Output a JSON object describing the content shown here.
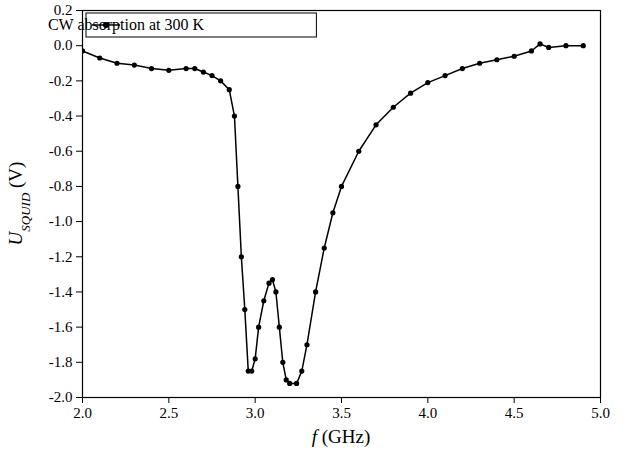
{
  "chart_data": {
    "type": "line",
    "x_label": {
      "main": "f",
      "rest": " (GHz)"
    },
    "y_label": {
      "main": "U",
      "subscript": "SQUID",
      "rest": " (V)"
    },
    "xlim": [
      2.0,
      5.0
    ],
    "ylim": [
      -2.0,
      0.2
    ],
    "xticks": [
      {
        "value": 2,
        "label": "2.0"
      },
      2.5,
      {
        "value": 3,
        "label": "3.0"
      },
      3.5,
      {
        "value": 4,
        "label": "4.0"
      },
      4.5,
      {
        "value": 5,
        "label": "5.0"
      }
    ],
    "yticks": [
      {
        "value": -2,
        "label": "-2.0"
      },
      -1.8,
      -1.6,
      -1.4,
      -1.2,
      {
        "value": -1,
        "label": "-1.0"
      },
      -0.8,
      -0.6,
      -0.4,
      -0.2,
      {
        "value": 0,
        "label": "0.0"
      },
      0.2
    ],
    "grid": false,
    "legend": "top-left",
    "series": [
      {
        "name": "CW absorption at 300 K",
        "color": "#000000",
        "marker": "circle",
        "line_style": "solid",
        "x": [
          2.0,
          2.1,
          2.2,
          2.3,
          2.4,
          2.5,
          2.6,
          2.65,
          2.7,
          2.75,
          2.8,
          2.85,
          2.88,
          2.9,
          2.92,
          2.94,
          2.96,
          2.98,
          3.0,
          3.02,
          3.05,
          3.08,
          3.1,
          3.12,
          3.14,
          3.16,
          3.18,
          3.2,
          3.24,
          3.27,
          3.3,
          3.35,
          3.4,
          3.45,
          3.5,
          3.6,
          3.7,
          3.8,
          3.9,
          4.0,
          4.1,
          4.2,
          4.3,
          4.4,
          4.5,
          4.6,
          4.65,
          4.7,
          4.8,
          4.9
        ],
        "values": [
          -0.03,
          -0.07,
          -0.1,
          -0.11,
          -0.13,
          -0.14,
          -0.13,
          -0.13,
          -0.15,
          -0.17,
          -0.2,
          -0.25,
          -0.4,
          -0.8,
          -1.2,
          -1.5,
          -1.85,
          -1.85,
          -1.78,
          -1.6,
          -1.45,
          -1.35,
          -1.33,
          -1.4,
          -1.6,
          -1.8,
          -1.9,
          -1.92,
          -1.92,
          -1.85,
          -1.7,
          -1.4,
          -1.15,
          -0.95,
          -0.8,
          -0.6,
          -0.45,
          -0.35,
          -0.27,
          -0.21,
          -0.17,
          -0.13,
          -0.1,
          -0.08,
          -0.06,
          -0.03,
          0.01,
          -0.01,
          0.0,
          0.0
        ]
      }
    ]
  }
}
